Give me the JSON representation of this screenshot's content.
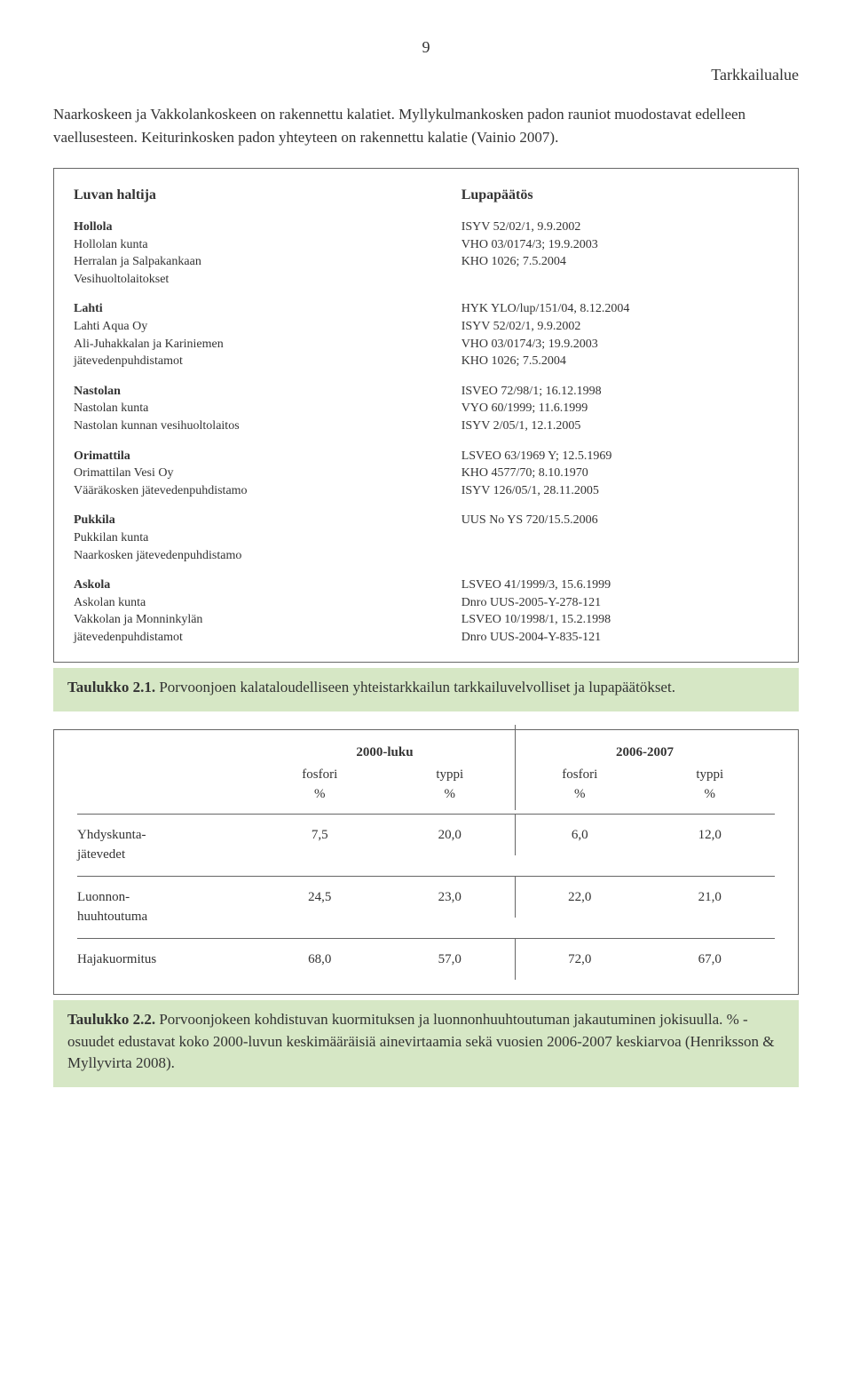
{
  "page_number": "9",
  "header_label": "Tarkkailualue",
  "intro_paragraph": "Naarkoskeen ja Vakkolankoskeen on rakennettu kalatiet. Myllykulmankosken padon rauniot muodostavat edelleen vaellusesteen. Keiturinkosken padon yhteyteen on rakennettu kalatie (Vainio 2007).",
  "table1": {
    "left_header": "Luvan haltija",
    "right_header": "Lupapäätös",
    "entries": [
      {
        "left": [
          "<b>Hollola</b>",
          "Hollolan kunta",
          "Herralan ja Salpakankaan",
          "Vesihuoltolaitokset"
        ],
        "right": [
          "ISYV 52/02/1, 9.9.2002",
          "VHO 03/0174/3; 19.9.2003",
          "KHO 1026; 7.5.2004"
        ]
      },
      {
        "left": [
          "<b>Lahti</b>",
          "Lahti Aqua Oy",
          "Ali-Juhakkalan ja Kariniemen",
          "jätevedenpuhdistamot"
        ],
        "right": [
          "HYK YLO/lup/151/04, 8.12.2004",
          "ISYV 52/02/1, 9.9.2002",
          "VHO 03/0174/3; 19.9.2003",
          "KHO 1026; 7.5.2004"
        ]
      },
      {
        "left": [
          "<b>Nastolan</b>",
          "Nastolan kunta",
          "Nastolan kunnan vesihuoltolaitos"
        ],
        "right": [
          "ISVEO 72/98/1; 16.12.1998",
          "VYO 60/1999; 11.6.1999",
          "ISYV 2/05/1, 12.1.2005"
        ]
      },
      {
        "left": [
          "<b>Orimattila</b>",
          "Orimattilan Vesi Oy",
          "Vääräkosken jätevedenpuhdistamo"
        ],
        "right": [
          "LSVEO 63/1969 Y; 12.5.1969",
          "KHO 4577/70; 8.10.1970",
          "ISYV 126/05/1, 28.11.2005"
        ]
      },
      {
        "left": [
          "<b>Pukkila</b>",
          "Pukkilan kunta",
          "Naarkosken jätevedenpuhdistamo"
        ],
        "right": [
          "UUS No YS 720/15.5.2006"
        ]
      },
      {
        "left": [
          "<b>Askola</b>",
          "Askolan kunta",
          "Vakkolan ja Monninkylän",
          "jätevedenpuhdistamot"
        ],
        "right": [
          "LSVEO 41/1999/3, 15.6.1999",
          "Dnro UUS-2005-Y-278-121",
          "LSVEO 10/1998/1, 15.2.1998",
          "Dnro UUS-2004-Y-835-121"
        ]
      }
    ]
  },
  "caption1_bold": "Taulukko 2.1.",
  "caption1_rest": " Porvoonjoen kalataloudelliseen yhteistarkkailun tarkkailuvelvolliset ja lupapäätökset.",
  "table2": {
    "periods": [
      "2000-luku",
      "2006-2007"
    ],
    "columns": [
      "fosfori",
      "typpi",
      "fosfori",
      "typpi"
    ],
    "unit": "%",
    "rows": [
      {
        "label_lines": [
          "Yhdyskunta-",
          "jätevedet"
        ],
        "values": [
          "7,5",
          "20,0",
          "6,0",
          "12,0"
        ]
      },
      {
        "label_lines": [
          "Luonnon-",
          "huuhtoutuma"
        ],
        "values": [
          "24,5",
          "23,0",
          "22,0",
          "21,0"
        ]
      },
      {
        "label_lines": [
          "Hajakuormitus"
        ],
        "values": [
          "68,0",
          "57,0",
          "72,0",
          "67,0"
        ]
      }
    ]
  },
  "caption2_bold": "Taulukko 2.2.",
  "caption2_rest": " Porvoonjokeen kohdistuvan kuormituksen ja luonnonhuuhtoutuman jakautuminen jokisuulla. % - osuudet edustavat koko 2000-luvun keskimääräisiä ainevirtaamia sekä vuosien 2006-2007 keskiarvoa (Henriksson & Myllyvirta 2008)."
}
